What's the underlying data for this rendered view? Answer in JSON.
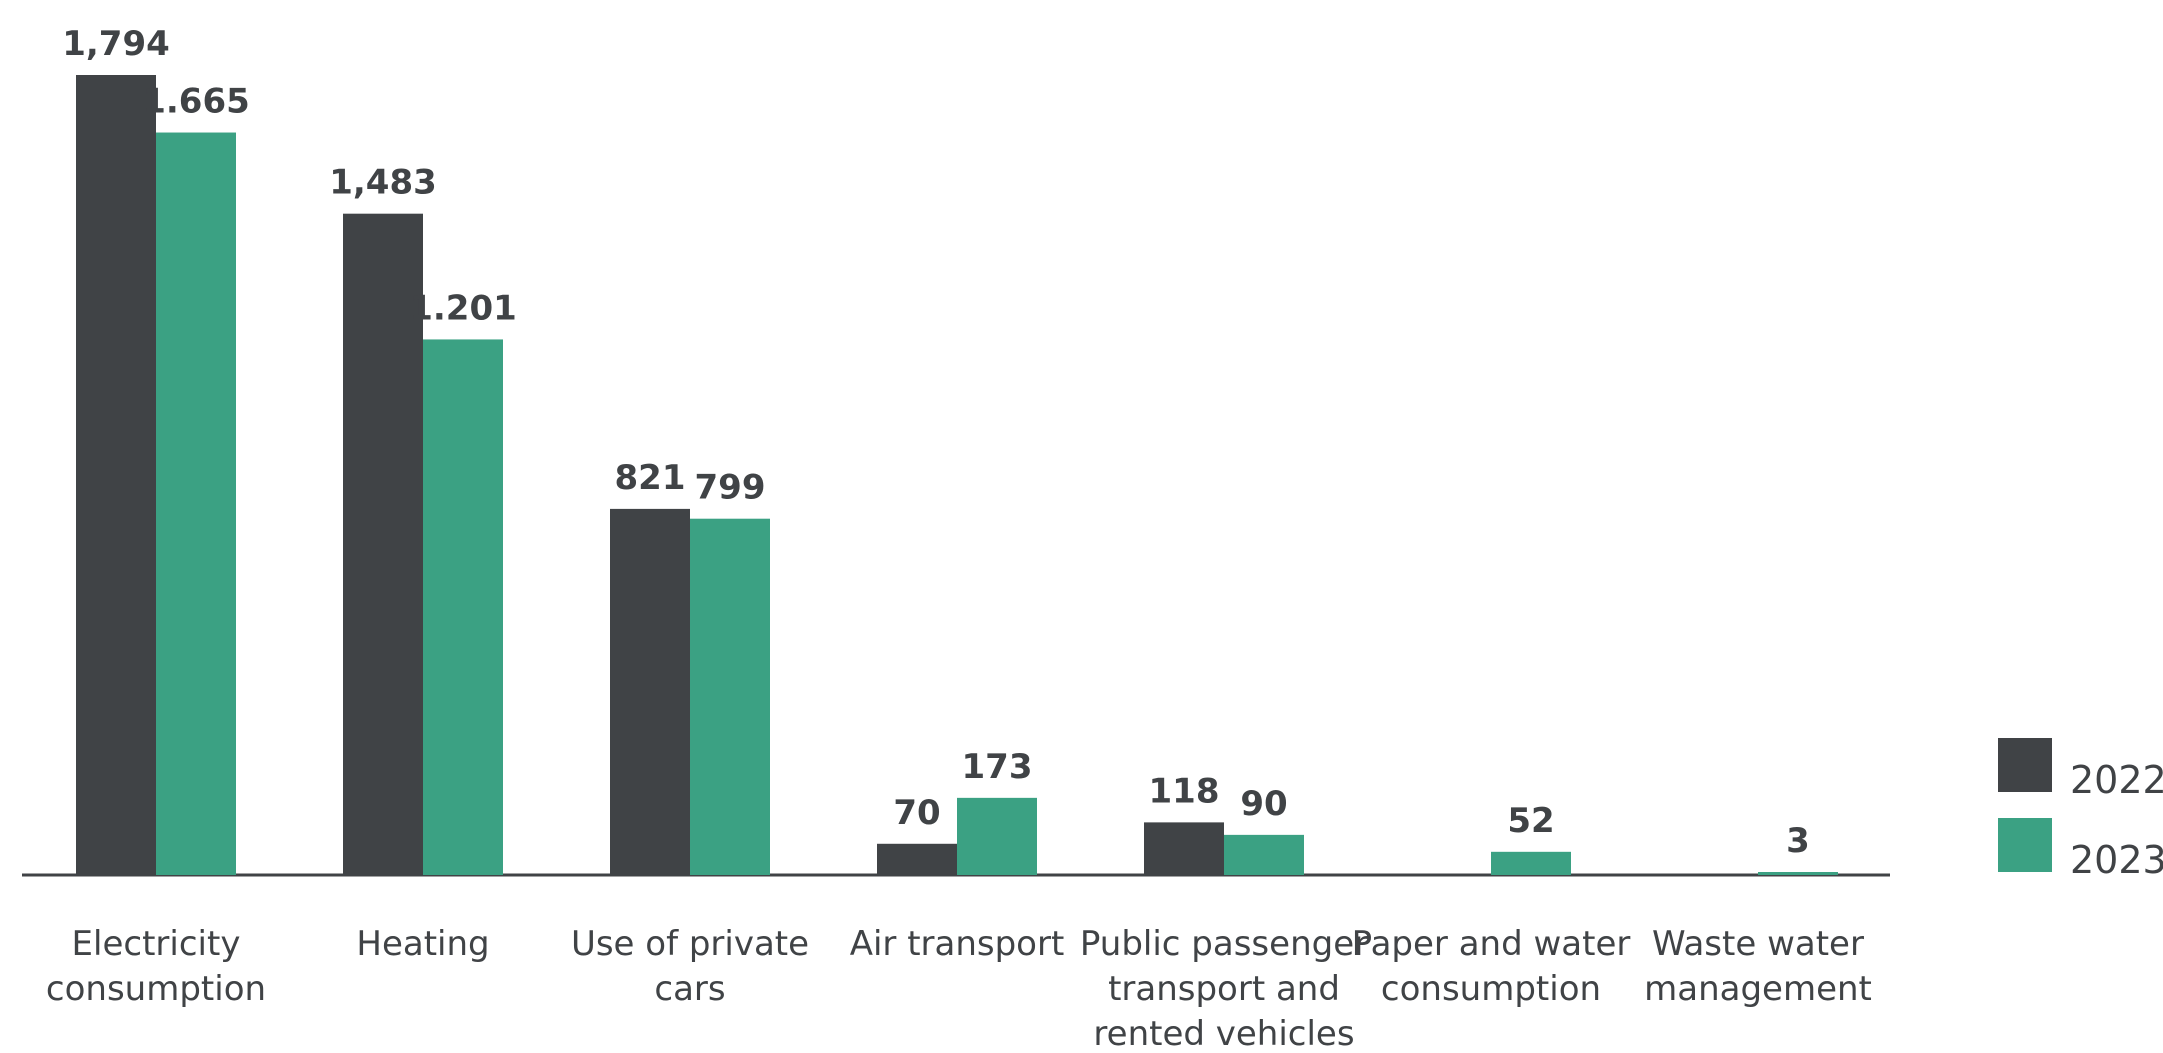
{
  "chart_data": {
    "type": "bar",
    "categories": [
      [
        "Electricity",
        "consumption"
      ],
      [
        "Heating"
      ],
      [
        "Use of private",
        "cars"
      ],
      [
        "Air transport"
      ],
      [
        "Public passenger",
        "transport and",
        "rented vehicles"
      ],
      [
        "Paper and water",
        "consumption"
      ],
      [
        "Waste water",
        "management"
      ]
    ],
    "series": [
      {
        "name": "2022",
        "color": "#404346",
        "values": [
          1794,
          1483,
          821,
          70,
          118,
          null,
          null
        ],
        "labels": [
          "1,794",
          "1,483",
          "821",
          "70",
          "118",
          "",
          ""
        ]
      },
      {
        "name": "2023",
        "color": "#3ba183",
        "values": [
          1665,
          1201,
          799,
          173,
          90,
          52,
          3
        ],
        "labels": [
          "1.665",
          "1.201",
          "799",
          "173",
          "90",
          "52",
          "3"
        ]
      }
    ],
    "ylim": [
      0,
      1794
    ],
    "grid": false,
    "legend_position": "right"
  }
}
